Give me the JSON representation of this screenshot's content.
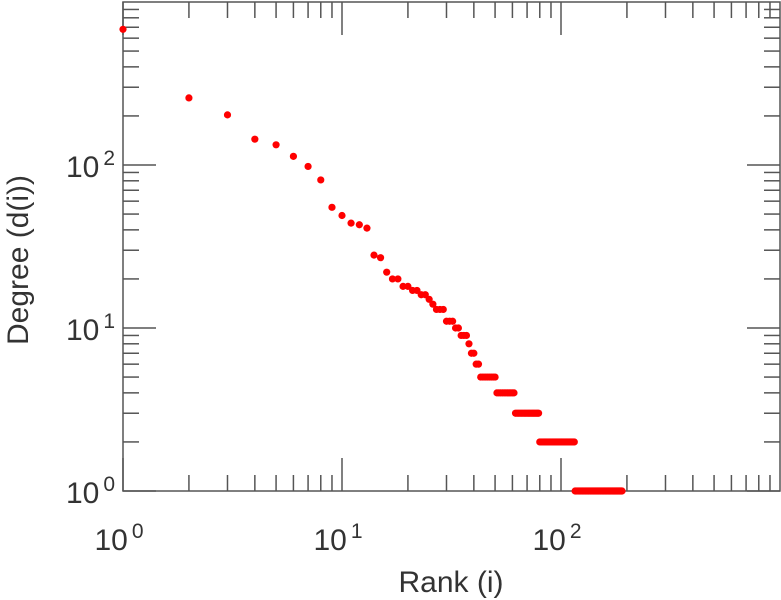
{
  "chart_data": {
    "type": "scatter",
    "title": "",
    "xlabel": "Rank (i)",
    "ylabel": "Degree (d(i))",
    "xscale": "log",
    "yscale": "log",
    "xlim": [
      1,
      1000
    ],
    "ylim": [
      1,
      1000
    ],
    "x_ticks": [
      {
        "base": "10",
        "exp": "0",
        "value": 1
      },
      {
        "base": "10",
        "exp": "1",
        "value": 10
      },
      {
        "base": "10",
        "exp": "2",
        "value": 100
      }
    ],
    "y_ticks": [
      {
        "base": "10",
        "exp": "0",
        "value": 1
      },
      {
        "base": "10",
        "exp": "1",
        "value": 10
      },
      {
        "base": "10",
        "exp": "2",
        "value": 100
      }
    ],
    "grid": false,
    "marker_color": "#ff0000",
    "points": {
      "rank": [
        1,
        2,
        3,
        4,
        5,
        6,
        7,
        8,
        9,
        10,
        11,
        12,
        13,
        14,
        15,
        16,
        17,
        18,
        19,
        20,
        21,
        22,
        23,
        24,
        25,
        26,
        27,
        28,
        29,
        30,
        31,
        32,
        33,
        34,
        35,
        36,
        37,
        38,
        39,
        40,
        41,
        42
      ],
      "degree": [
        680,
        258,
        203,
        144,
        133,
        113,
        98,
        81,
        55,
        49,
        44,
        43,
        41,
        28,
        27,
        22,
        20,
        20,
        18,
        18,
        17,
        17,
        16,
        16,
        15,
        14,
        13,
        13,
        13,
        11,
        11,
        11,
        10,
        10,
        9,
        9,
        9,
        8,
        7,
        7,
        6,
        6
      ]
    },
    "runs": [
      {
        "degree": 5,
        "rank_from": 43,
        "rank_to": 50
      },
      {
        "degree": 4,
        "rank_from": 51,
        "rank_to": 61
      },
      {
        "degree": 3,
        "rank_from": 62,
        "rank_to": 79
      },
      {
        "degree": 2,
        "rank_from": 80,
        "rank_to": 115
      },
      {
        "degree": 1,
        "rank_from": 116,
        "rank_to": 190
      }
    ]
  }
}
